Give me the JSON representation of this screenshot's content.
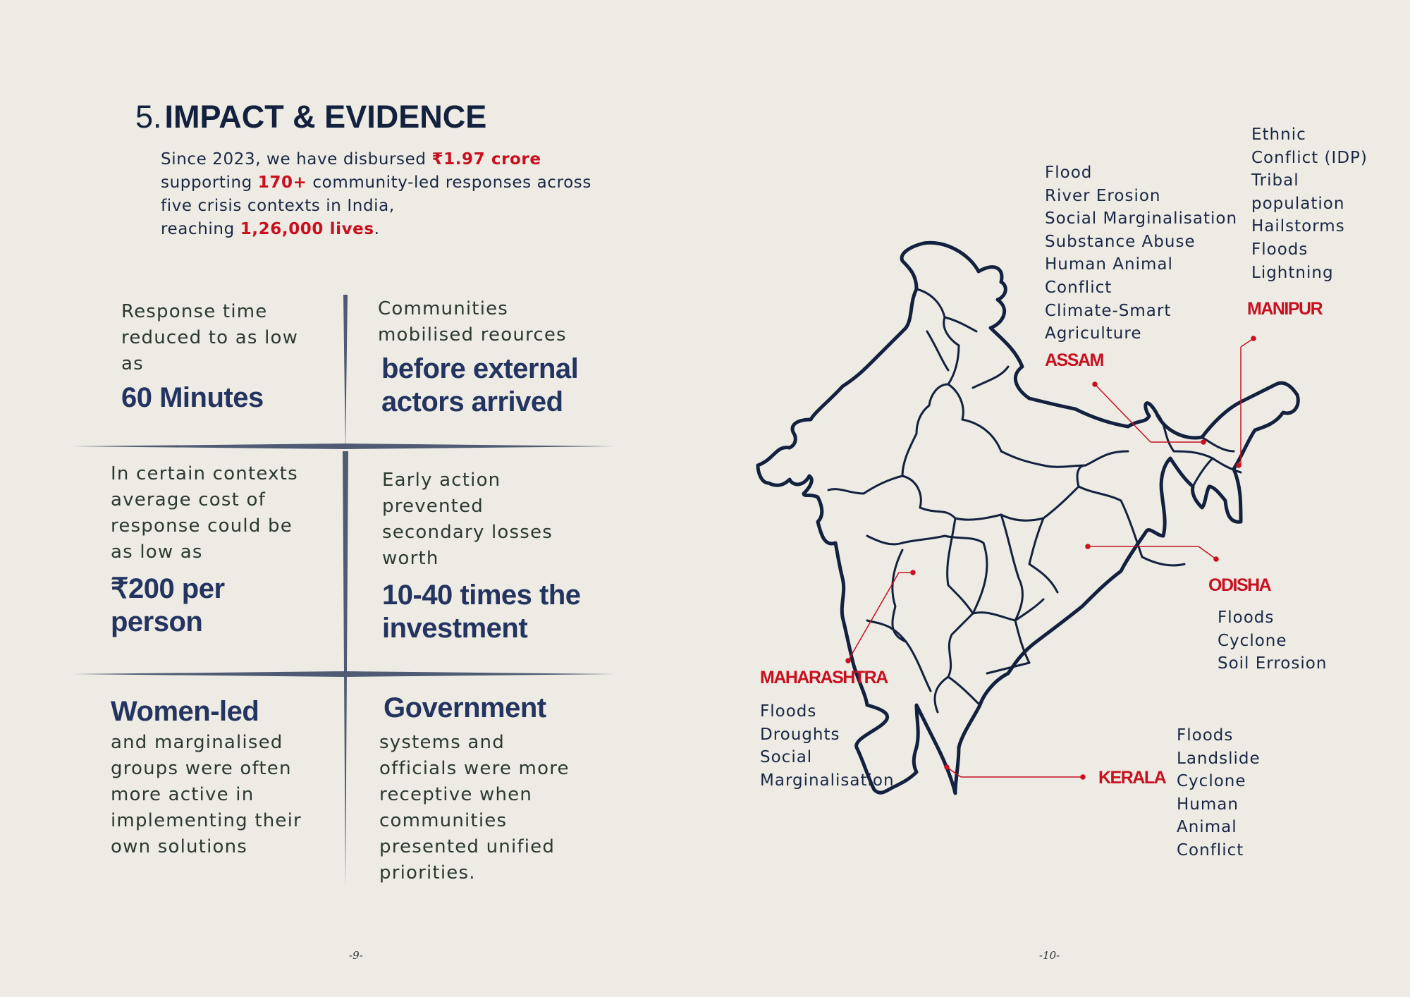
{
  "heading": {
    "number": "5.",
    "title": "IMPACT & EVIDENCE"
  },
  "intro": {
    "p1": "Since 2023, we have disbursed ",
    "amount": "₹1.97 crore",
    "p2": "supporting ",
    "count": "170+",
    "p3": " community-led responses across",
    "p4": "five crisis contexts in India,",
    "p5": "reaching ",
    "lives": "1,26,000 lives",
    "p6": "."
  },
  "grid": {
    "c1": {
      "lines": [
        "Response time",
        "reduced to as low",
        "as"
      ],
      "big": [
        "60 Minutes"
      ]
    },
    "c2": {
      "lines": [
        "Communities",
        "mobilised reources"
      ],
      "big": [
        "before external",
        "actors arrived"
      ]
    },
    "c3": {
      "lines": [
        "In certain contexts",
        "average cost of",
        "response could be",
        "as low as"
      ],
      "big": [
        "₹200 per",
        "person"
      ]
    },
    "c4": {
      "lines": [
        "Early action",
        "prevented",
        "secondary losses",
        "worth"
      ],
      "big": [
        "10-40 times the",
        "investment"
      ]
    },
    "c5": {
      "big": [
        "Women-led"
      ],
      "lines": [
        "and marginalised",
        "groups were often",
        "more active in",
        "implementing their",
        "own solutions"
      ]
    },
    "c6": {
      "big": [
        "Government"
      ],
      "lines": [
        "systems and",
        "officials were more",
        "receptive when",
        "communities",
        "presented unified",
        "priorities."
      ]
    }
  },
  "map": {
    "assam": {
      "name": "ASSAM",
      "items": [
        "Flood",
        "River Erosion",
        "Social Marginalisation",
        "Substance Abuse",
        "Human Animal",
        "Conflict",
        "Climate-Smart",
        "Agriculture"
      ]
    },
    "manipur": {
      "name": "MANIPUR",
      "items": [
        "Ethnic",
        "Conflict (IDP)",
        "Tribal",
        "population",
        "Hailstorms",
        "Floods",
        "Lightning"
      ]
    },
    "odisha": {
      "name": "ODISHA",
      "items": [
        "Floods",
        "Cyclone",
        "Soil Errosion"
      ]
    },
    "maharashtra": {
      "name": "MAHARASHTRA",
      "items": [
        "Floods",
        "Droughts",
        "Social",
        "Marginalisation"
      ]
    },
    "kerala": {
      "name": "KERALA",
      "items": [
        "Floods",
        "Landslide",
        "Cyclone",
        "Human",
        "Animal",
        "Conflict"
      ]
    }
  },
  "pages": {
    "left": "-9-",
    "right": "-10-"
  },
  "colors": {
    "accent_red": "#c8101f",
    "navy": "#13213f",
    "background": "#edebe4"
  }
}
